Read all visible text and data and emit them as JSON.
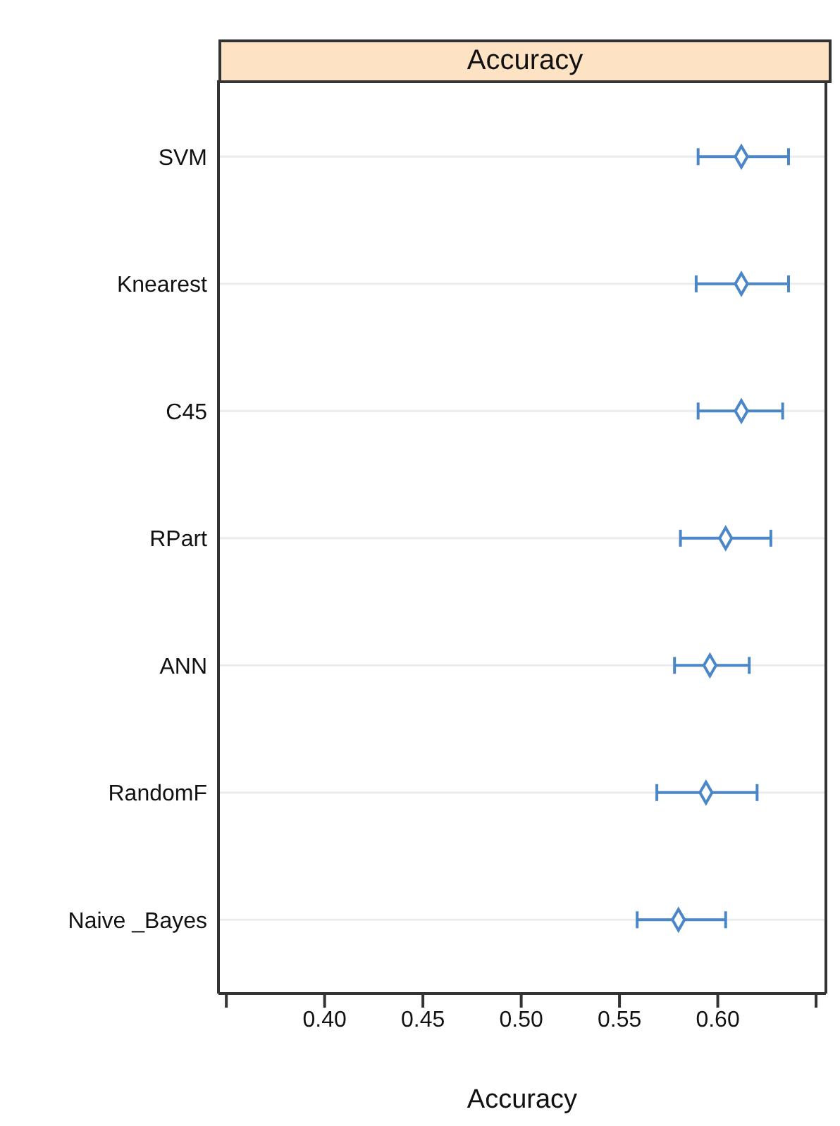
{
  "chart_data": {
    "type": "scatter",
    "orientation": "horizontal",
    "title": "Accuracy",
    "xlabel": "Accuracy",
    "categories": [
      "SVM",
      "Knearest",
      "C45",
      "RPart",
      "ANN",
      "RandomF",
      "Naive _Bayes"
    ],
    "series": [
      {
        "color": "#4a86c8",
        "values": [
          0.612,
          0.612,
          0.612,
          0.604,
          0.596,
          0.594,
          0.58
        ],
        "errors": [
          [
            0.59,
            0.636
          ],
          [
            0.589,
            0.636
          ],
          [
            0.59,
            0.633
          ],
          [
            0.581,
            0.627
          ],
          [
            0.578,
            0.616
          ],
          [
            0.569,
            0.62
          ],
          [
            0.559,
            0.604
          ]
        ]
      }
    ],
    "xlim": [
      0.346,
      0.655
    ],
    "xticks": [
      {
        "value": 0.35,
        "label": null
      },
      {
        "value": 0.4,
        "label": "0.40"
      },
      {
        "value": 0.45,
        "label": "0.45"
      },
      {
        "value": 0.5,
        "label": "0.50"
      },
      {
        "value": 0.55,
        "label": "0.55"
      },
      {
        "value": 0.6,
        "label": "0.60"
      },
      {
        "value": 0.65,
        "label": null
      }
    ],
    "marker": "diamond",
    "grid": "y"
  }
}
